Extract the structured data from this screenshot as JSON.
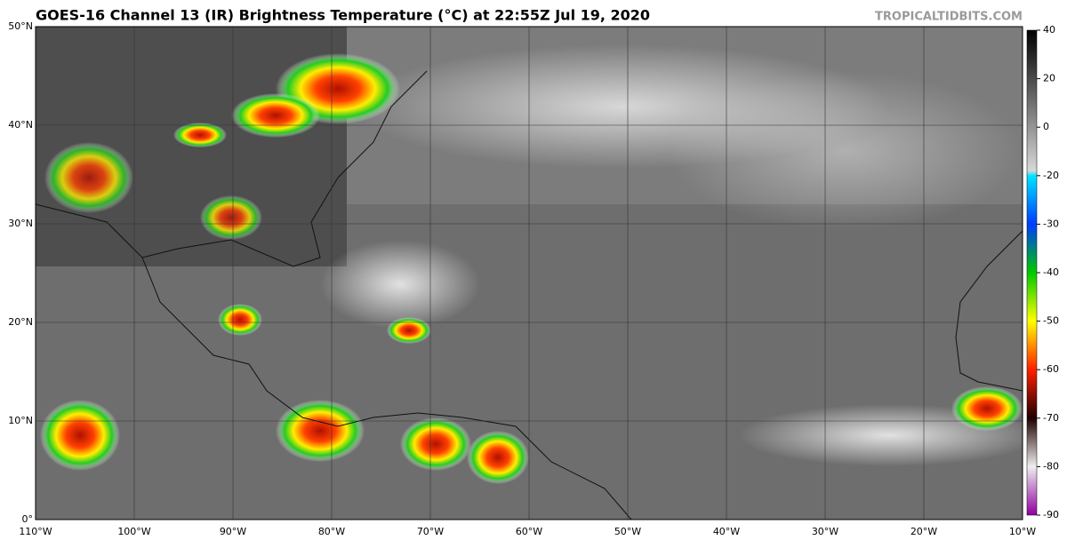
{
  "header": {
    "title": "GOES-16 Channel 13 (IR) Brightness Temperature (°C) at 22:55Z Jul 19, 2020",
    "credit": "TROPICALTIDBITS.COM"
  },
  "map": {
    "lat_labels": [
      "50°N",
      "40°N",
      "30°N",
      "20°N",
      "10°N",
      "0°"
    ],
    "lon_labels": [
      "110°W",
      "100°W",
      "90°W",
      "80°W",
      "70°W",
      "60°W",
      "50°W",
      "40°W",
      "30°W",
      "20°W",
      "10°W"
    ]
  },
  "colorbar": {
    "ticks": [
      40,
      20,
      0,
      -20,
      -30,
      -40,
      -50,
      -60,
      -70,
      -80,
      -90
    ]
  }
}
